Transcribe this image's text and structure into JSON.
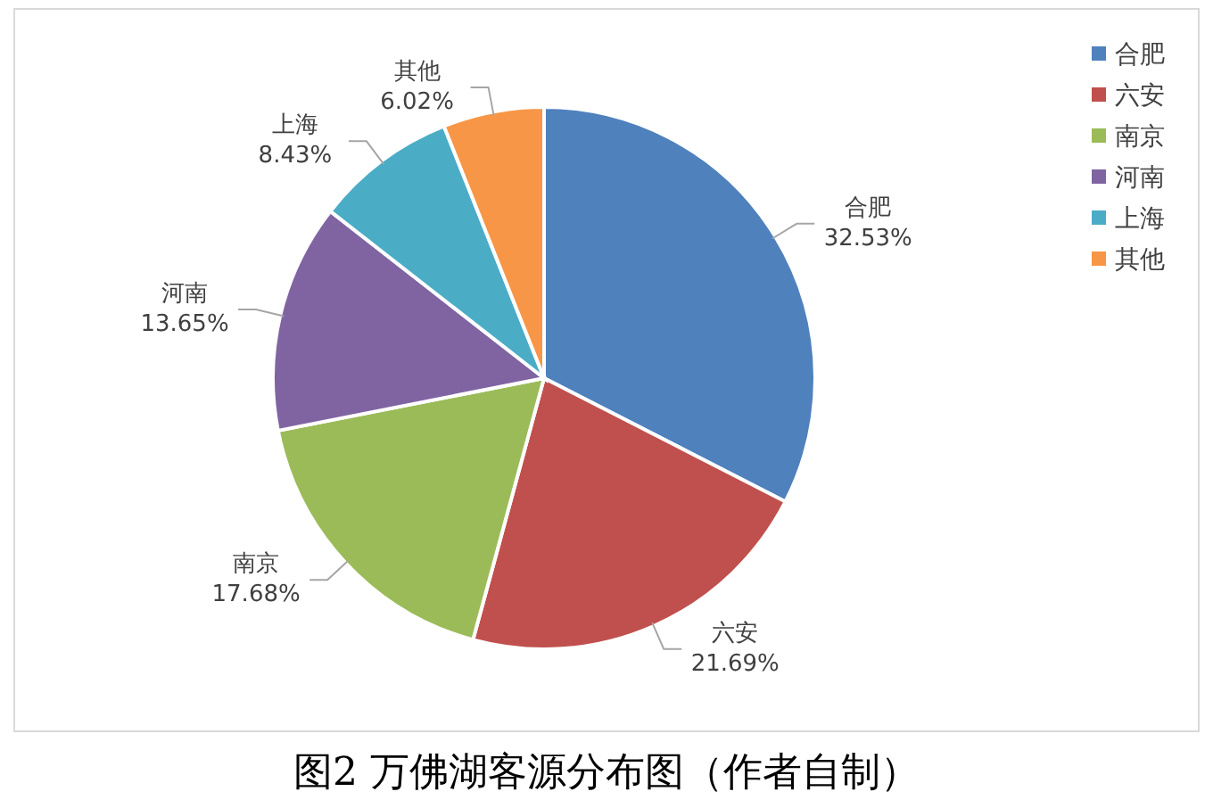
{
  "chart_data": {
    "type": "pie",
    "title": "图2 万佛湖客源分布图（作者自制）",
    "categories": [
      "合肥",
      "六安",
      "南京",
      "河南",
      "上海",
      "其他"
    ],
    "values": [
      32.53,
      21.69,
      17.68,
      13.65,
      8.43,
      6.02
    ],
    "value_labels": [
      "32.53%",
      "21.69%",
      "17.68%",
      "13.65%",
      "8.43%",
      "6.02%"
    ],
    "colors": [
      "#4f81bd",
      "#c0504d",
      "#9bbb59",
      "#8064a2",
      "#4bacc6",
      "#f79646"
    ],
    "legend": "top right"
  }
}
